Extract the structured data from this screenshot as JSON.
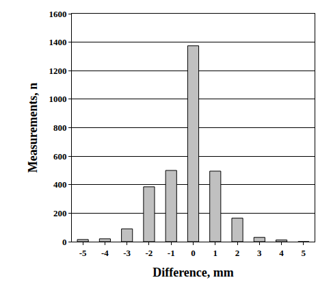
{
  "chart_data": {
    "type": "bar",
    "x_label": "Difference, mm",
    "y_label": "Measurements, n",
    "categories": [
      "-5",
      "-4",
      "-3",
      "-2",
      "-1",
      "0",
      "1",
      "2",
      "3",
      "4",
      "5"
    ],
    "values": [
      15,
      20,
      90,
      385,
      500,
      1375,
      495,
      165,
      30,
      12,
      0
    ],
    "color": "#c0c0c0",
    "ylim": [
      0,
      1600
    ],
    "yticks": [
      0,
      200,
      400,
      600,
      800,
      1000,
      1200,
      1400,
      1600
    ],
    "grid": true
  }
}
